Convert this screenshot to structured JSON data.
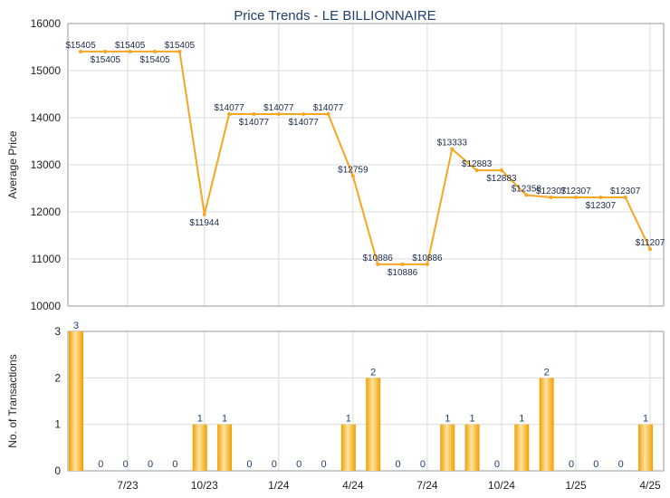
{
  "chart_data": {
    "title": "Price Trends - LE BILLIONNAIRE",
    "colors": {
      "line": "#f5a623",
      "bar_light": "#fde3a0",
      "bar_dark": "#f0a000",
      "title": "#1f3f6e"
    },
    "x_ticks": [
      "7/23",
      "10/23",
      "1/24",
      "4/24",
      "7/24",
      "10/24",
      "1/25",
      "4/25"
    ],
    "price_chart": {
      "type": "line",
      "ylabel": "Average Price",
      "ylim": [
        10000,
        16000
      ],
      "y_ticks": [
        "10000",
        "11000",
        "12000",
        "13000",
        "14000",
        "15000",
        "16000"
      ],
      "values": [
        15405,
        15405,
        15405,
        15405,
        15405,
        11944,
        14077,
        14077,
        14077,
        14077,
        14077,
        12759,
        10886,
        10886,
        10886,
        13333,
        12883,
        12883,
        12358,
        12307,
        12307,
        12307,
        12307,
        11207
      ],
      "labels": [
        "$15405",
        "$15405",
        "$15405",
        "$15405",
        "$15405",
        "$11944",
        "$14077",
        "$14077",
        "$14077",
        "$14077",
        "$14077",
        "$12759",
        "$10886",
        "$10886",
        "$10886",
        "$13333",
        "$12883",
        "$12883",
        "$12358",
        "$12307",
        "$12307",
        "$12307",
        "$12307",
        "$11207"
      ]
    },
    "volume_chart": {
      "type": "bar",
      "ylabel": "No. of Transactions",
      "ylim": [
        0,
        3
      ],
      "y_ticks": [
        "0",
        "1",
        "2",
        "3"
      ],
      "values": [
        3,
        0,
        0,
        0,
        0,
        1,
        1,
        0,
        0,
        0,
        0,
        1,
        2,
        0,
        0,
        1,
        1,
        0,
        1,
        2,
        0,
        0,
        0,
        1
      ],
      "labels": [
        "3",
        "0",
        "0",
        "0",
        "0",
        "1",
        "1",
        "0",
        "0",
        "0",
        "0",
        "1",
        "2",
        "0",
        "0",
        "1",
        "1",
        "0",
        "1",
        "2",
        "0",
        "0",
        "0",
        "1"
      ]
    }
  }
}
